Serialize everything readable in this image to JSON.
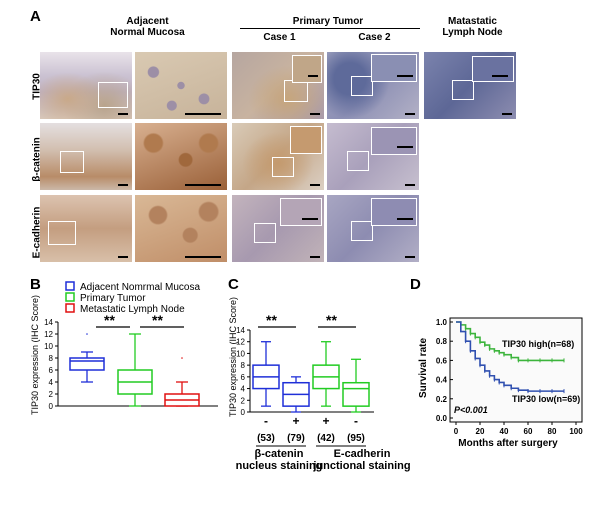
{
  "panel_a": {
    "letter": "A",
    "col_headers": {
      "adjacent": "Adjacent\nNormal Mucosa",
      "primary": "Primary Tumor",
      "case1": "Case 1",
      "case2": "Case 2",
      "metastatic": "Matastatic\nLymph Node"
    },
    "row_labels": [
      "TIP30",
      "β-catenin",
      "E-cadherin"
    ]
  },
  "panel_b": {
    "letter": "B",
    "legend": [
      "Adjacent Nomrmal Mucosa",
      "Primary Tumor",
      "Metastatic Lymph Node"
    ],
    "significance": [
      "**",
      "**"
    ]
  },
  "panel_c": {
    "letter": "C",
    "groups": [
      "-",
      "+",
      "+",
      "-"
    ],
    "counts": [
      "(53)",
      "(79)",
      "(42)",
      "(95)"
    ],
    "significance": [
      "**",
      "**"
    ],
    "group_labels": [
      "β-catenin\nnucleus staining",
      "E-cadherin\njunctional staining"
    ]
  },
  "panel_d": {
    "letter": "D",
    "series_labels": [
      "TIP30 high(n=68)",
      "TIP30 low(n=69)"
    ],
    "pvalue": "P<0.001"
  },
  "colors": {
    "blue": "#1f2fd8",
    "green": "#22cc22",
    "red": "#e01010",
    "km_green": "#3cb43c",
    "km_blue": "#3050b0"
  },
  "chart_data": [
    {
      "type": "box",
      "ylabel": "TIP30 expression (IHC Score)",
      "ylim": [
        0,
        14
      ],
      "yticks": [
        "0",
        "2",
        "4",
        "6",
        "8",
        "10",
        "12",
        "14"
      ],
      "series": [
        {
          "name": "Adjacent Nomrmal Mucosa",
          "min": 4,
          "q1": 6,
          "median": 7.5,
          "q3": 8,
          "max": 9,
          "outliers": [
            12
          ]
        },
        {
          "name": "Primary Tumor",
          "min": 0,
          "q1": 2,
          "median": 4,
          "q3": 6,
          "max": 12,
          "outliers": []
        },
        {
          "name": "Metastatic Lymph Node",
          "min": 0,
          "q1": 0,
          "median": 1,
          "q3": 2,
          "max": 4,
          "outliers": [
            8
          ]
        }
      ]
    },
    {
      "type": "box",
      "ylabel": "TIP30 expression (IHC Score)",
      "ylim": [
        0,
        14
      ],
      "yticks": [
        "0",
        "2",
        "4",
        "6",
        "8",
        "10",
        "12",
        "14"
      ],
      "categories": [
        "-",
        "+",
        "+",
        "-"
      ],
      "series": [
        {
          "min": 1,
          "q1": 4,
          "median": 6,
          "q3": 8,
          "max": 12
        },
        {
          "min": 0,
          "q1": 1,
          "median": 3,
          "q3": 5,
          "max": 6
        },
        {
          "min": 1,
          "q1": 4,
          "median": 6,
          "q3": 8,
          "max": 12
        },
        {
          "min": 0,
          "q1": 1,
          "median": 4,
          "q3": 5,
          "max": 9
        }
      ]
    },
    {
      "type": "line",
      "ylabel": "Survival rate",
      "xlabel": "Months after surgery",
      "xlim": [
        0,
        100
      ],
      "ylim": [
        0,
        1.0
      ],
      "xticks": [
        "0",
        "20",
        "40",
        "60",
        "80",
        "100"
      ],
      "yticks": [
        "0.0",
        "0.2",
        "0.4",
        "0.6",
        "0.8",
        "1.0"
      ],
      "series": [
        {
          "name": "TIP30 high(n=68)",
          "x": [
            0,
            4,
            8,
            12,
            16,
            20,
            24,
            28,
            32,
            36,
            40,
            46,
            52,
            60,
            70,
            80,
            90
          ],
          "y": [
            1.0,
            0.97,
            0.93,
            0.88,
            0.84,
            0.79,
            0.76,
            0.72,
            0.7,
            0.68,
            0.66,
            0.63,
            0.6,
            0.6,
            0.6,
            0.6,
            0.6
          ]
        },
        {
          "name": "TIP30 low(n=69)",
          "x": [
            0,
            4,
            8,
            12,
            16,
            20,
            24,
            28,
            32,
            36,
            40,
            46,
            52,
            60,
            70,
            80,
            90
          ],
          "y": [
            1.0,
            0.9,
            0.8,
            0.7,
            0.62,
            0.55,
            0.49,
            0.44,
            0.4,
            0.37,
            0.34,
            0.31,
            0.29,
            0.28,
            0.28,
            0.28,
            0.28
          ]
        }
      ]
    }
  ]
}
